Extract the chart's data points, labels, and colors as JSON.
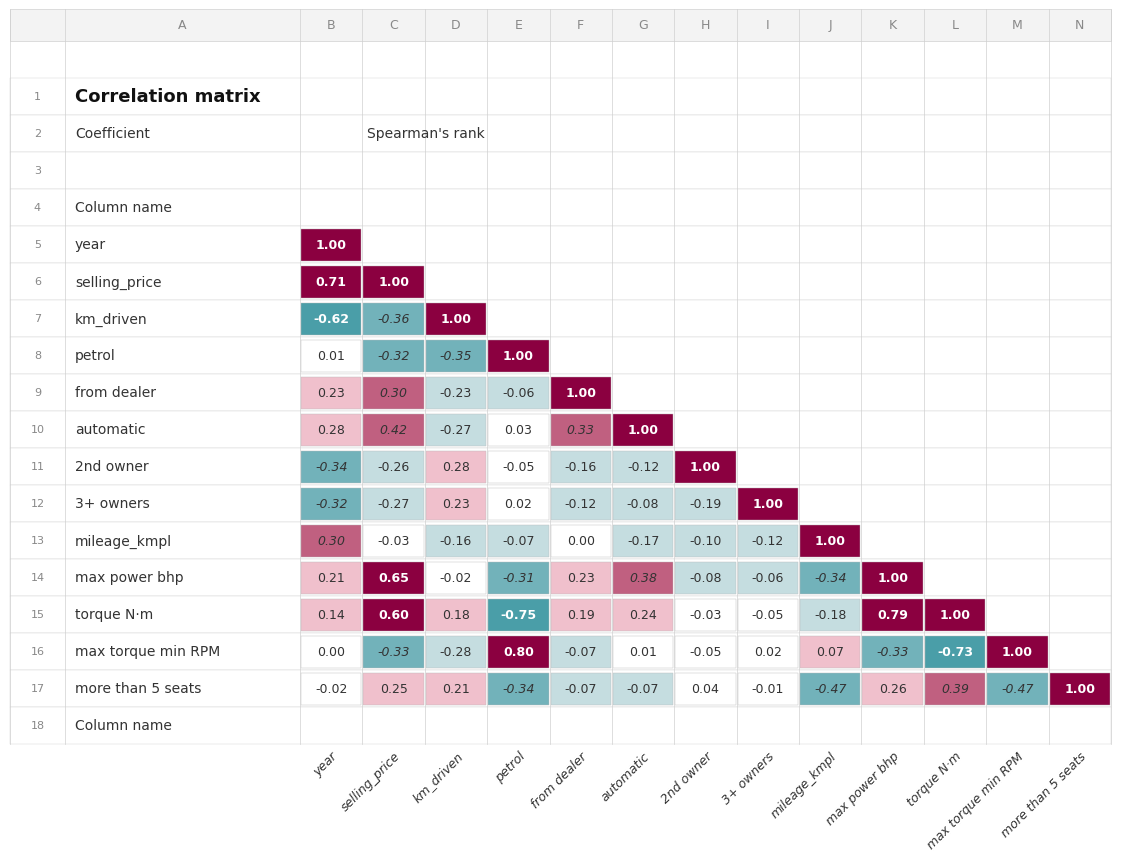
{
  "title": "Correlation matrix",
  "subtitle_label": "Coefficient",
  "subtitle_value": "Spearman's rank",
  "col_header_label": "Column name",
  "row_labels": [
    "year",
    "selling_price",
    "km_driven",
    "petrol",
    "from dealer",
    "automatic",
    "2nd owner",
    "3+ owners",
    "mileage_kmpl",
    "max power bhp",
    "torque N·m",
    "max torque min RPM",
    "more than 5 seats"
  ],
  "col_labels": [
    "year",
    "selling_price",
    "km_driven",
    "petrol",
    "from dealer",
    "automatic",
    "2nd owner",
    "3+ owners",
    "mileage_kmpl",
    "max power bhp",
    "torque N·m",
    "max torque min RPM",
    "more than 5 seats"
  ],
  "matrix": [
    [
      1.0,
      null,
      null,
      null,
      null,
      null,
      null,
      null,
      null,
      null,
      null,
      null,
      null
    ],
    [
      0.71,
      1.0,
      null,
      null,
      null,
      null,
      null,
      null,
      null,
      null,
      null,
      null,
      null
    ],
    [
      -0.62,
      -0.36,
      1.0,
      null,
      null,
      null,
      null,
      null,
      null,
      null,
      null,
      null,
      null
    ],
    [
      0.01,
      -0.32,
      -0.35,
      1.0,
      null,
      null,
      null,
      null,
      null,
      null,
      null,
      null,
      null
    ],
    [
      0.23,
      0.3,
      -0.23,
      -0.06,
      1.0,
      null,
      null,
      null,
      null,
      null,
      null,
      null,
      null
    ],
    [
      0.28,
      0.42,
      -0.27,
      0.03,
      0.33,
      1.0,
      null,
      null,
      null,
      null,
      null,
      null,
      null
    ],
    [
      -0.34,
      -0.26,
      0.28,
      -0.05,
      -0.16,
      -0.12,
      1.0,
      null,
      null,
      null,
      null,
      null,
      null
    ],
    [
      -0.32,
      -0.27,
      0.23,
      0.02,
      -0.12,
      -0.08,
      -0.19,
      1.0,
      null,
      null,
      null,
      null,
      null
    ],
    [
      0.3,
      -0.03,
      -0.16,
      -0.07,
      0.0,
      -0.17,
      -0.1,
      -0.12,
      1.0,
      null,
      null,
      null,
      null
    ],
    [
      0.21,
      0.65,
      -0.02,
      -0.31,
      0.23,
      0.38,
      -0.08,
      -0.06,
      -0.34,
      1.0,
      null,
      null,
      null
    ],
    [
      0.14,
      0.6,
      0.18,
      -0.75,
      0.19,
      0.24,
      -0.03,
      -0.05,
      -0.18,
      0.79,
      1.0,
      null,
      null
    ],
    [
      0.0,
      -0.33,
      -0.28,
      0.8,
      -0.07,
      0.01,
      -0.05,
      0.02,
      0.07,
      -0.33,
      -0.73,
      1.0,
      null
    ],
    [
      -0.02,
      0.25,
      0.21,
      -0.34,
      -0.07,
      -0.07,
      0.04,
      -0.01,
      -0.47,
      0.26,
      0.39,
      -0.47,
      1.0
    ]
  ],
  "bold_threshold": 0.5,
  "italic_threshold": 0.3,
  "bg_color": "#ffffff",
  "grid_color": "#d0d0d0",
  "row_num_color": "#888888",
  "col_letter_color": "#888888",
  "title_fontsize": 13,
  "label_fontsize": 10,
  "cell_fontsize": 9,
  "header_letter_fontsize": 9,
  "rownum_fontsize": 8,
  "dark_red": "#8B0040",
  "mid_red": "#C06080",
  "light_red": "#F0C0CC",
  "light_teal": "#C5DDE0",
  "mid_teal": "#72B2BA",
  "dark_teal": "#4A9EA8",
  "text_dark": "#333333",
  "text_white": "#ffffff"
}
